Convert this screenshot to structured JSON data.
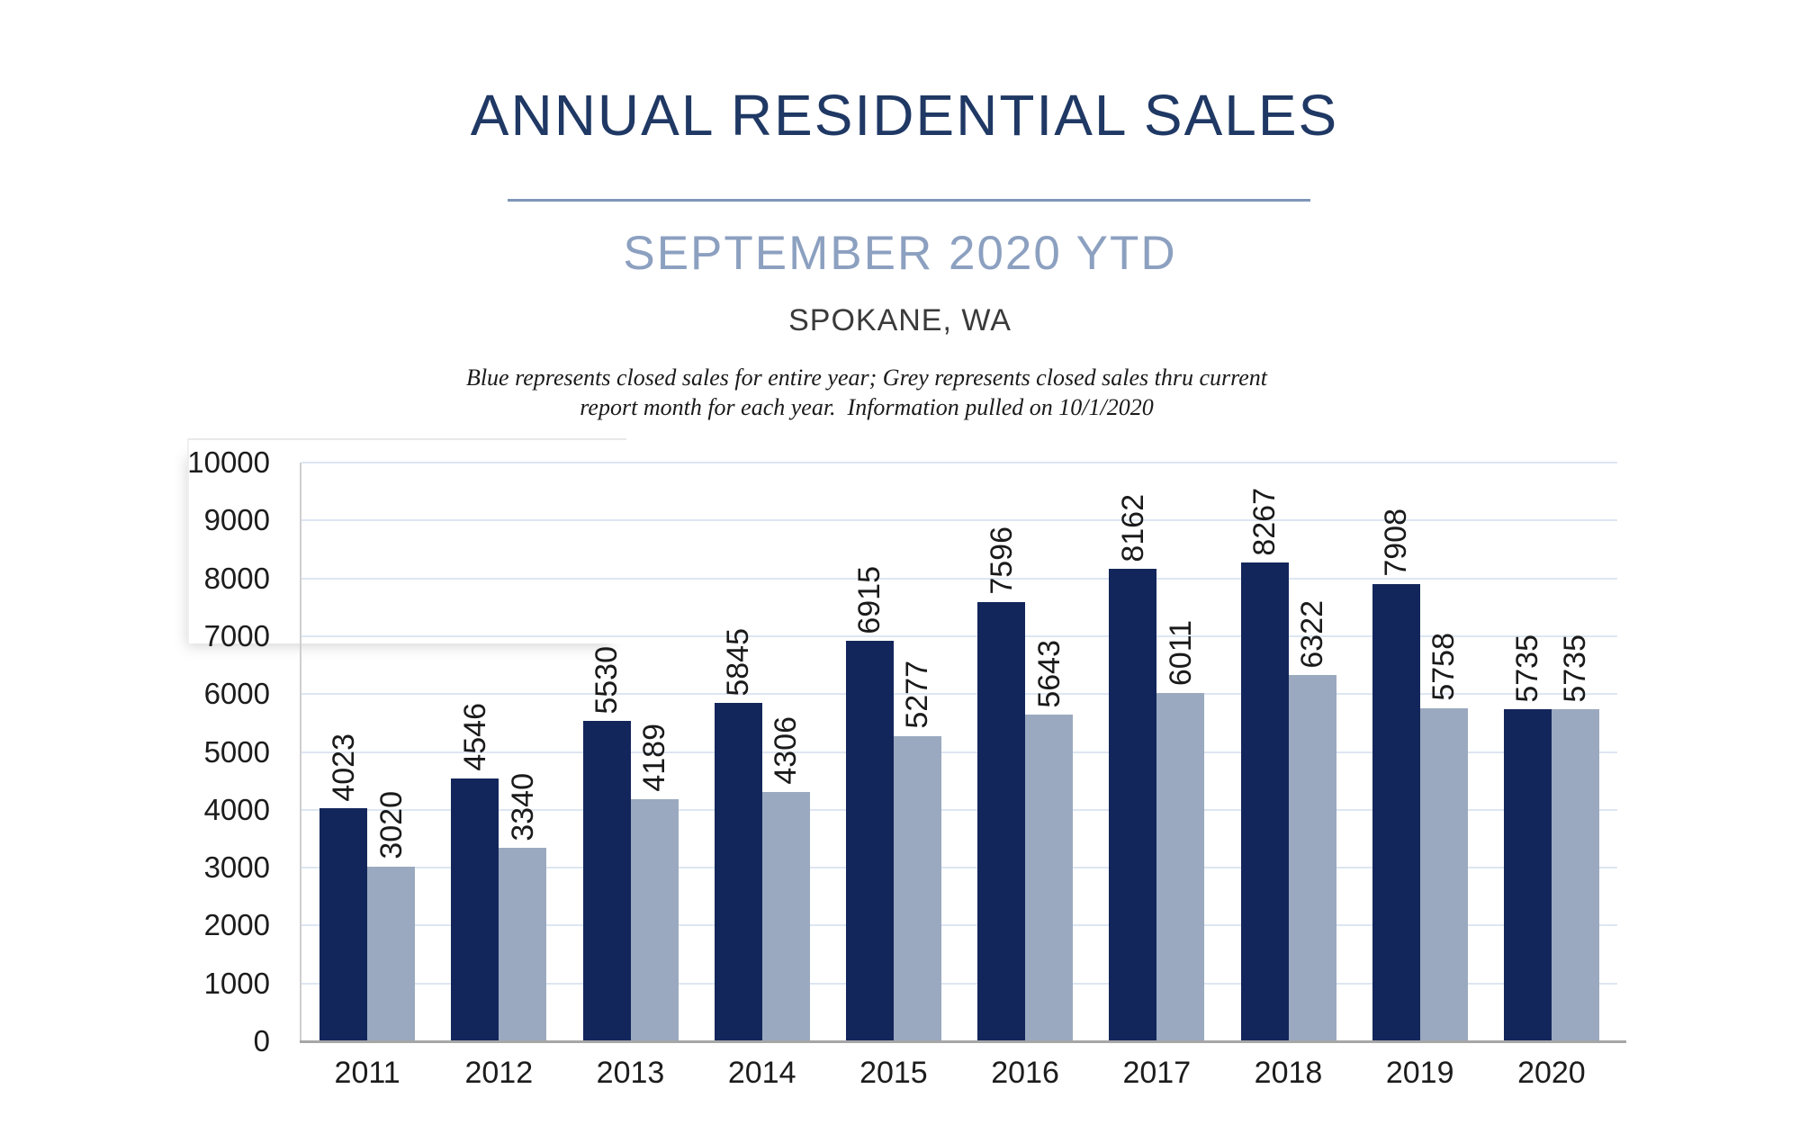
{
  "header": {
    "title": "ANNUAL RESIDENTIAL SALES",
    "subtitle": "SEPTEMBER 2020 YTD",
    "location": "SPOKANE, WA",
    "note_line1": "Blue represents closed sales for entire year; Grey represents closed sales thru current",
    "note_line2": "report month for each year.  Information pulled on 10/1/2020",
    "title_color": "#1F3864",
    "underline_color": "#7E96B9",
    "subtitle_color": "#8CA0C0",
    "location_color": "#3A3A3A"
  },
  "chart_data": {
    "type": "bar",
    "title": "",
    "categories": [
      "2011",
      "2012",
      "2013",
      "2014",
      "2015",
      "2016",
      "2017",
      "2018",
      "2019",
      "2020"
    ],
    "series": [
      {
        "name": "Closed sales for entire year (Blue)",
        "color": "#13265B",
        "values": [
          4023,
          4546,
          5530,
          5845,
          6915,
          7596,
          8162,
          8267,
          7908,
          5735
        ]
      },
      {
        "name": "Closed sales thru current report month (Grey)",
        "color": "#9AA9BF",
        "values": [
          3020,
          3340,
          4189,
          4306,
          5277,
          5643,
          6011,
          6322,
          5758,
          5735
        ]
      }
    ],
    "xlabel": "",
    "ylabel": "",
    "ylim": [
      0,
      10000
    ],
    "ytick_interval": 1000,
    "ytick_labels": [
      "0",
      "1000",
      "2000",
      "3000",
      "4000",
      "5000",
      "6000",
      "7000",
      "8000",
      "9000",
      "10000"
    ],
    "grid": true,
    "gridline_color": "#DDE6F2",
    "y_axis_line_color": "#CFCFCF",
    "x_axis_line_color": "#A6A6A6",
    "tick_label_color": "#1C1C1C",
    "value_label_color": "#1A1A1A",
    "value_label_rotation": -90,
    "legend_position": "none"
  }
}
